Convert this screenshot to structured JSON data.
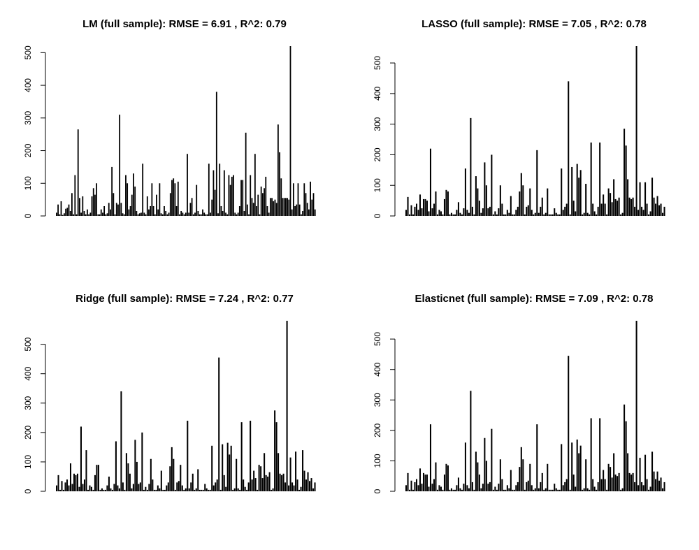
{
  "chart_data": [
    {
      "type": "bar",
      "title": "LM (full sample): RMSE = 6.91 , R^2: 0.79",
      "xlabel": "",
      "ylabel": "",
      "ylim": [
        0,
        520
      ],
      "yticks": [
        0,
        100,
        200,
        300,
        400,
        500
      ],
      "grid": false,
      "values": [
        10,
        35,
        5,
        45,
        3,
        8,
        22,
        25,
        35,
        15,
        70,
        5,
        125,
        5,
        265,
        55,
        10,
        60,
        15,
        5,
        20,
        5,
        10,
        60,
        85,
        65,
        100,
        5,
        5,
        20,
        10,
        30,
        5,
        8,
        40,
        20,
        150,
        70,
        5,
        40,
        35,
        310,
        40,
        8,
        5,
        125,
        100,
        20,
        30,
        65,
        130,
        90,
        15,
        5,
        8,
        10,
        160,
        10,
        5,
        60,
        20,
        30,
        100,
        30,
        5,
        65,
        20,
        100,
        8,
        5,
        30,
        15,
        5,
        10,
        70,
        110,
        115,
        100,
        30,
        105,
        5,
        15,
        10,
        5,
        10,
        190,
        10,
        40,
        55,
        5,
        10,
        95,
        15,
        5,
        5,
        20,
        10,
        5,
        5,
        160,
        10,
        50,
        140,
        80,
        380,
        8,
        160,
        30,
        15,
        140,
        10,
        5,
        125,
        95,
        120,
        125,
        10,
        5,
        10,
        30,
        110,
        110,
        15,
        255,
        35,
        5,
        125,
        55,
        40,
        190,
        30,
        65,
        5,
        90,
        70,
        85,
        120,
        30,
        10,
        55,
        55,
        45,
        50,
        40,
        280,
        195,
        115,
        55,
        55,
        55,
        55,
        50,
        520,
        20,
        100,
        30,
        35,
        100,
        35,
        5,
        15,
        100,
        70,
        40,
        20,
        105,
        50,
        70,
        20
      ],
      "color": "#000000"
    },
    {
      "type": "bar",
      "title": "LASSO (full sample): RMSE = 7.05 , R^2: 0.78",
      "xlabel": "",
      "ylabel": "",
      "ylim": [
        0,
        555
      ],
      "yticks": [
        0,
        100,
        200,
        300,
        400,
        500
      ],
      "grid": false,
      "values": [
        20,
        62,
        5,
        35,
        5,
        30,
        40,
        20,
        70,
        25,
        55,
        55,
        50,
        15,
        220,
        25,
        40,
        80,
        5,
        20,
        15,
        5,
        55,
        85,
        80,
        5,
        10,
        5,
        5,
        20,
        45,
        10,
        5,
        25,
        155,
        20,
        10,
        320,
        30,
        5,
        130,
        90,
        50,
        10,
        25,
        175,
        100,
        25,
        30,
        200,
        5,
        15,
        5,
        25,
        100,
        40,
        5,
        5,
        20,
        10,
        65,
        5,
        5,
        20,
        30,
        80,
        140,
        100,
        5,
        30,
        35,
        90,
        20,
        5,
        10,
        215,
        10,
        30,
        60,
        5,
        10,
        90,
        5,
        5,
        5,
        25,
        10,
        5,
        5,
        155,
        20,
        30,
        40,
        440,
        5,
        160,
        50,
        15,
        170,
        125,
        150,
        5,
        10,
        105,
        10,
        5,
        240,
        40,
        15,
        5,
        30,
        240,
        40,
        70,
        40,
        5,
        90,
        75,
        45,
        120,
        55,
        50,
        60,
        5,
        10,
        285,
        230,
        120,
        60,
        55,
        60,
        30,
        555,
        20,
        110,
        30,
        20,
        110,
        40,
        5,
        15,
        125,
        60,
        40,
        65,
        35,
        40,
        10,
        30
      ],
      "color": "#000000"
    },
    {
      "type": "bar",
      "title": "Ridge (full sample): RMSE = 7.24 , R^2: 0.77",
      "xlabel": "",
      "ylabel": "",
      "ylim": [
        0,
        580
      ],
      "yticks": [
        0,
        100,
        200,
        300,
        400,
        500
      ],
      "grid": false,
      "values": [
        20,
        55,
        5,
        35,
        5,
        30,
        40,
        20,
        95,
        25,
        60,
        55,
        60,
        15,
        220,
        25,
        40,
        140,
        5,
        20,
        15,
        5,
        55,
        90,
        90,
        5,
        10,
        5,
        5,
        20,
        50,
        10,
        5,
        25,
        170,
        20,
        10,
        340,
        30,
        5,
        130,
        95,
        60,
        10,
        25,
        175,
        100,
        25,
        30,
        200,
        5,
        15,
        5,
        25,
        110,
        40,
        5,
        5,
        20,
        10,
        70,
        5,
        5,
        20,
        30,
        85,
        150,
        110,
        5,
        30,
        35,
        90,
        20,
        5,
        10,
        240,
        10,
        30,
        60,
        5,
        10,
        75,
        5,
        5,
        5,
        25,
        10,
        5,
        5,
        155,
        20,
        30,
        40,
        455,
        5,
        160,
        55,
        15,
        165,
        125,
        155,
        5,
        10,
        110,
        10,
        5,
        235,
        40,
        15,
        5,
        30,
        240,
        40,
        70,
        45,
        5,
        90,
        85,
        45,
        130,
        55,
        50,
        65,
        5,
        10,
        275,
        235,
        130,
        60,
        55,
        60,
        30,
        580,
        20,
        115,
        30,
        20,
        135,
        40,
        5,
        15,
        140,
        70,
        40,
        65,
        35,
        45,
        10,
        30
      ],
      "color": "#000000"
    },
    {
      "type": "bar",
      "title": "Elasticnet (full sample): RMSE = 7.09 , R^2: 0.78",
      "xlabel": "",
      "ylabel": "",
      "ylim": [
        0,
        560
      ],
      "yticks": [
        0,
        100,
        200,
        300,
        400,
        500
      ],
      "grid": false,
      "values": [
        20,
        60,
        5,
        35,
        5,
        30,
        40,
        20,
        75,
        25,
        60,
        55,
        55,
        15,
        220,
        25,
        40,
        95,
        5,
        20,
        15,
        5,
        55,
        90,
        85,
        5,
        10,
        5,
        5,
        20,
        45,
        10,
        5,
        25,
        160,
        20,
        10,
        330,
        30,
        5,
        130,
        95,
        55,
        10,
        25,
        175,
        100,
        25,
        30,
        205,
        5,
        15,
        5,
        25,
        105,
        40,
        5,
        5,
        20,
        10,
        70,
        5,
        5,
        20,
        30,
        80,
        145,
        105,
        5,
        30,
        35,
        90,
        20,
        5,
        10,
        220,
        10,
        30,
        60,
        5,
        10,
        90,
        5,
        5,
        5,
        25,
        10,
        5,
        5,
        155,
        20,
        30,
        40,
        445,
        5,
        160,
        55,
        15,
        170,
        125,
        150,
        5,
        10,
        105,
        10,
        5,
        240,
        40,
        15,
        5,
        30,
        240,
        40,
        70,
        40,
        5,
        90,
        80,
        45,
        125,
        55,
        50,
        60,
        5,
        10,
        285,
        230,
        125,
        60,
        55,
        60,
        30,
        560,
        20,
        110,
        30,
        20,
        120,
        40,
        5,
        15,
        130,
        65,
        40,
        65,
        35,
        45,
        10,
        30
      ],
      "color": "#000000"
    }
  ]
}
